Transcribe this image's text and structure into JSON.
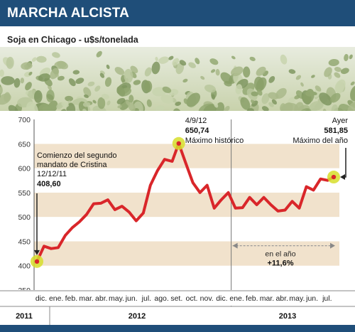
{
  "header": {
    "title": "MARCHA ALCISTA"
  },
  "subtitle": "Soja en Chicago - u$s/tonelada",
  "colors": {
    "header_bg": "#1f4e79",
    "line": "#d9262a",
    "band": "#f1e2cc",
    "marker": "#d7de2a"
  },
  "chart_data": {
    "type": "line",
    "ylim": [
      350,
      700
    ],
    "yticks": [
      350,
      400,
      450,
      500,
      550,
      600,
      650,
      700
    ],
    "grid": "horizontal bands",
    "month_labels": [
      "dic.",
      "ene.",
      "feb.",
      "mar.",
      "abr.",
      "may.",
      "jun.",
      "jul.",
      "ago.",
      "set.",
      "oct.",
      "nov.",
      "dic.",
      "ene.",
      "feb.",
      "mar.",
      "abr.",
      "may.",
      "jun.",
      "jul."
    ],
    "year_labels": [
      "2011",
      "2012",
      "2013"
    ],
    "series": [
      {
        "x": [
          "2011-12-12",
          "2011-12-26",
          "2012-01-09",
          "2012-01-23",
          "2012-02-06",
          "2012-02-20",
          "2012-03-05",
          "2012-03-19",
          "2012-04-02",
          "2012-04-16",
          "2012-04-30",
          "2012-05-14",
          "2012-05-28",
          "2012-06-11",
          "2012-06-25",
          "2012-07-09",
          "2012-07-23",
          "2012-08-06",
          "2012-08-20",
          "2012-09-04",
          "2012-09-17",
          "2012-10-01",
          "2012-10-15",
          "2012-10-29",
          "2012-11-12",
          "2012-11-26",
          "2012-12-10",
          "2012-12-24",
          "2013-01-07",
          "2013-01-21",
          "2013-02-04",
          "2013-02-18",
          "2013-03-04",
          "2013-03-18",
          "2013-04-01",
          "2013-04-15",
          "2013-04-29",
          "2013-05-13",
          "2013-05-27",
          "2013-06-10",
          "2013-06-24",
          "2013-07-08",
          "2013-07-20"
        ],
        "values": [
          408.6,
          440,
          435,
          437,
          462,
          478,
          490,
          505,
          527,
          528,
          535,
          515,
          522,
          510,
          492,
          508,
          565,
          595,
          618,
          614,
          650.74,
          610,
          570,
          550,
          565,
          518,
          535,
          550,
          518,
          519,
          540,
          525,
          540,
          525,
          512,
          514,
          532,
          518,
          562,
          555,
          578,
          575,
          581.85
        ]
      }
    ],
    "annotations": [
      {
        "date": "12/12/11",
        "lines": [
          "Comienzo del segundo",
          "mandato de Cristina"
        ],
        "value": "408,60"
      },
      {
        "date": "4/9/12",
        "value": "650,74",
        "note": "Máximo histórico"
      },
      {
        "date": "Ayer",
        "value": "581,85",
        "note": "Máximo del año"
      }
    ],
    "range_note": {
      "label": "en el año",
      "value": "+11,6%"
    }
  }
}
